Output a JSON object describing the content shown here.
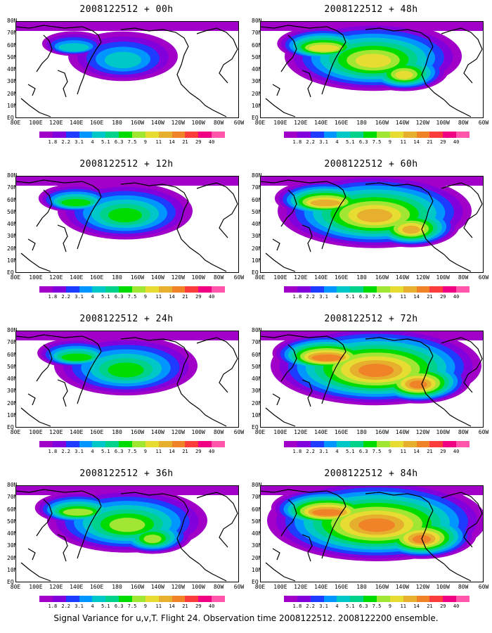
{
  "panels": [
    {
      "title": "2008122512 + 00h",
      "intensity": 0.15
    },
    {
      "title": "2008122512 + 48h",
      "intensity": 0.55
    },
    {
      "title": "2008122512 + 12h",
      "intensity": 0.3
    },
    {
      "title": "2008122512 + 60h",
      "intensity": 0.65
    },
    {
      "title": "2008122512 + 24h",
      "intensity": 0.35
    },
    {
      "title": "2008122512 + 72h",
      "intensity": 0.75
    },
    {
      "title": "2008122512 + 36h",
      "intensity": 0.45
    },
    {
      "title": "2008122512 + 84h",
      "intensity": 0.8
    }
  ],
  "lat_labels": [
    "80N",
    "70N",
    "60N",
    "50N",
    "40N",
    "30N",
    "20N",
    "10N",
    "EQ"
  ],
  "lon_labels": [
    "80E",
    "100E",
    "120E",
    "140E",
    "160E",
    "180",
    "160W",
    "140W",
    "120W",
    "100W",
    "80W",
    "60W"
  ],
  "colorbar": {
    "labels": [
      "1.8",
      "2.2",
      "3.1",
      "4",
      "5.1",
      "6.3",
      "7.5",
      "9",
      "11",
      "14",
      "21",
      "29",
      "40"
    ],
    "colors": [
      "#a000c8",
      "#8200dc",
      "#1e3cff",
      "#0096ff",
      "#00c8c8",
      "#00d28c",
      "#00dc00",
      "#a0e632",
      "#e6dc32",
      "#e6af2d",
      "#f08228",
      "#fa3c3c",
      "#f00082",
      "#ff55aa"
    ]
  },
  "caption": "Signal Variance for u,v,T. Flight 24. Observation time 2008122512. 2008122200 ensemble."
}
